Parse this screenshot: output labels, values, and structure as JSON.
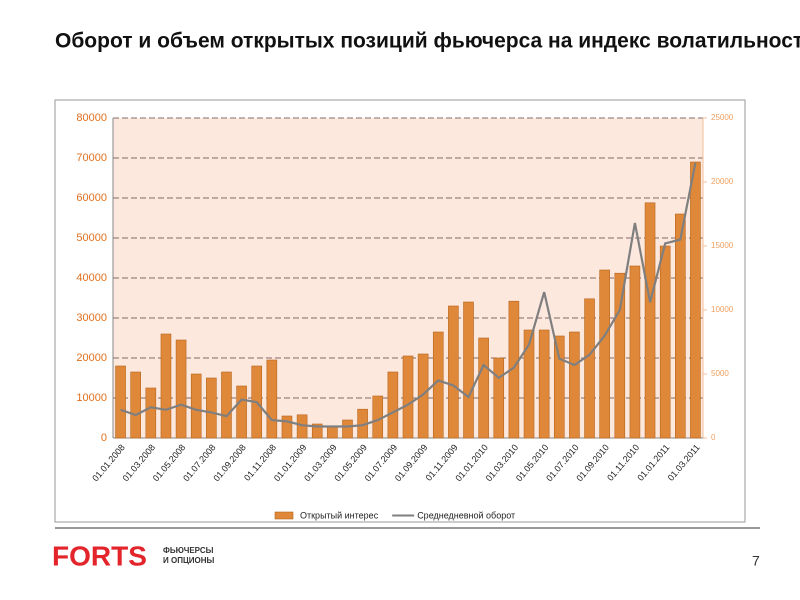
{
  "chart_data": {
    "type": "bar-line",
    "title": "Оборот и объем открытых позиций фьючерса на индекс волатильности на СВОЕ",
    "categories": [
      "01.01.2008",
      null,
      "01.03.2008",
      null,
      "01.05.2008",
      null,
      "01.07.2008",
      null,
      "01.09.2008",
      null,
      "01.11.2008",
      null,
      "01.01.2009",
      null,
      "01.03.2009",
      null,
      "01.05.2009",
      null,
      "01.07.2009",
      null,
      "01.09.2009",
      null,
      "01.11.2009",
      null,
      "01.01.2010",
      null,
      "01.03.2010",
      null,
      "01.05.2010",
      null,
      "01.07.2010",
      null,
      "01.09.2010",
      null,
      "01.11.2010",
      null,
      "01.01.2011",
      null,
      "01.03.2011"
    ],
    "series": [
      {
        "name": "Открытый интерес",
        "type": "bar",
        "color": "#e0883a",
        "axis": "y",
        "values": [
          18000,
          16500,
          12500,
          26000,
          24500,
          16000,
          15000,
          16500,
          13000,
          18000,
          19500,
          5500,
          5800,
          3500,
          3000,
          4500,
          7200,
          10500,
          16500,
          20500,
          21000,
          26500,
          33000,
          34000,
          25000,
          20000,
          34200,
          27000,
          27000,
          25500,
          26500,
          34800,
          42000,
          41200,
          43000,
          58800,
          48000,
          56000,
          69000
        ]
      },
      {
        "name": "Среднедневной оборот",
        "type": "line",
        "color": "#7f7f7f",
        "axis": "y2",
        "values": [
          2200,
          1800,
          2400,
          2200,
          2600,
          2200,
          2000,
          1700,
          3000,
          2800,
          1400,
          1300,
          1000,
          900,
          900,
          900,
          1000,
          1400,
          2000,
          2600,
          3400,
          4500,
          4100,
          3200,
          5700,
          4700,
          5500,
          7300,
          11400,
          6200,
          5700,
          6500,
          8000,
          10000,
          16800,
          10600,
          15200,
          15500,
          21500
        ]
      }
    ],
    "ylim": [
      0,
      80000
    ],
    "yticks": [
      0,
      10000,
      20000,
      30000,
      40000,
      50000,
      60000,
      70000,
      80000
    ],
    "y2lim": [
      0,
      25000
    ],
    "y2ticks": [
      0,
      5000,
      10000,
      15000,
      20000,
      25000
    ],
    "grid": true,
    "legend": "bottom"
  },
  "footer": {
    "logo": "FORTS",
    "logo_caption_1": "ФЬЮЧЕРСЫ",
    "logo_caption_2": "И ОПЦИОНЫ",
    "page_number": "7"
  }
}
